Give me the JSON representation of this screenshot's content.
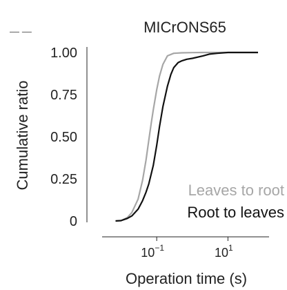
{
  "chart_data": {
    "type": "line",
    "title": "MICrONS65",
    "xlabel": "Operation time (s)",
    "ylabel": "Cumulative ratio",
    "x_scale": "log",
    "xlim": [
      0.005,
      100
    ],
    "ylim": [
      0,
      1
    ],
    "grid": false,
    "legend_placement": "bottom-right",
    "x_ticks": [
      {
        "value": 0.1,
        "base": "10",
        "exp": "−1"
      },
      {
        "value": 10,
        "base": "10",
        "exp": "1"
      }
    ],
    "y_ticks": [
      {
        "value": 0,
        "label": "0"
      },
      {
        "value": 0.25,
        "label": "0.25"
      },
      {
        "value": 0.5,
        "label": "0.50"
      },
      {
        "value": 0.75,
        "label": "0.75"
      },
      {
        "value": 1,
        "label": "1.00"
      }
    ],
    "series": [
      {
        "name": "Leaves to root",
        "color": "#a6a6a6",
        "x": [
          0.007,
          0.01,
          0.015,
          0.02,
          0.03,
          0.04,
          0.05,
          0.06,
          0.07,
          0.08,
          0.1,
          0.12,
          0.15,
          0.2,
          0.3,
          0.5,
          1,
          2,
          5,
          10,
          30,
          70
        ],
        "y": [
          0,
          0.002,
          0.02,
          0.05,
          0.13,
          0.24,
          0.36,
          0.48,
          0.58,
          0.66,
          0.78,
          0.86,
          0.93,
          0.98,
          0.995,
          0.998,
          0.999,
          1,
          1,
          1,
          1,
          1
        ]
      },
      {
        "name": "Root to leaves",
        "color": "#111111",
        "x": [
          0.007,
          0.01,
          0.015,
          0.02,
          0.03,
          0.04,
          0.05,
          0.06,
          0.08,
          0.1,
          0.12,
          0.15,
          0.2,
          0.25,
          0.3,
          0.4,
          0.5,
          0.7,
          1,
          2,
          3,
          5,
          10,
          30,
          70
        ],
        "y": [
          0,
          0.002,
          0.015,
          0.03,
          0.07,
          0.12,
          0.17,
          0.22,
          0.33,
          0.45,
          0.56,
          0.68,
          0.8,
          0.87,
          0.91,
          0.94,
          0.95,
          0.96,
          0.965,
          0.98,
          0.99,
          0.995,
          1,
          1,
          1
        ]
      }
    ],
    "legend_note": "— —"
  }
}
